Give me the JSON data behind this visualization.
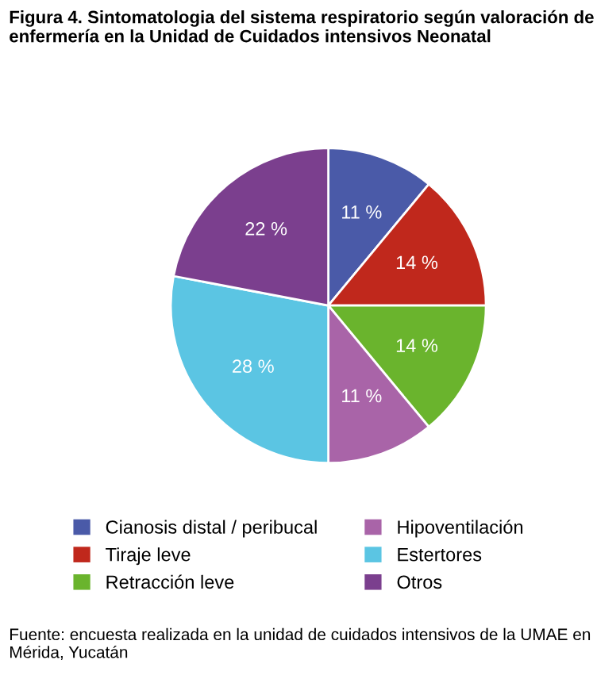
{
  "chart_data": {
    "type": "pie",
    "title": "Figura 4. Sintomatologia del sistema respiratorio según valoración de enfermería en la Unidad de Cuidados intensivos Neonatal",
    "categories": [
      "Cianosis distal / peribucal",
      "Tiraje leve",
      "Retracción leve",
      "Hipoventilación",
      "Estertores",
      "Otros"
    ],
    "values": [
      11,
      14,
      14,
      11,
      28,
      22
    ],
    "value_labels": [
      "11 %",
      "14 %",
      "14 %",
      "11 %",
      "28 %",
      "22 %"
    ],
    "colors": [
      "#4a5aa8",
      "#c0281c",
      "#6ab42d",
      "#a964a8",
      "#5bc5e3",
      "#7b3f8e"
    ],
    "legend": "bottom",
    "annotations": [
      "Fuente: encuesta realizada en la unidad de cuidados intensivos de la UMAE en Mérida, Yucatán"
    ]
  }
}
